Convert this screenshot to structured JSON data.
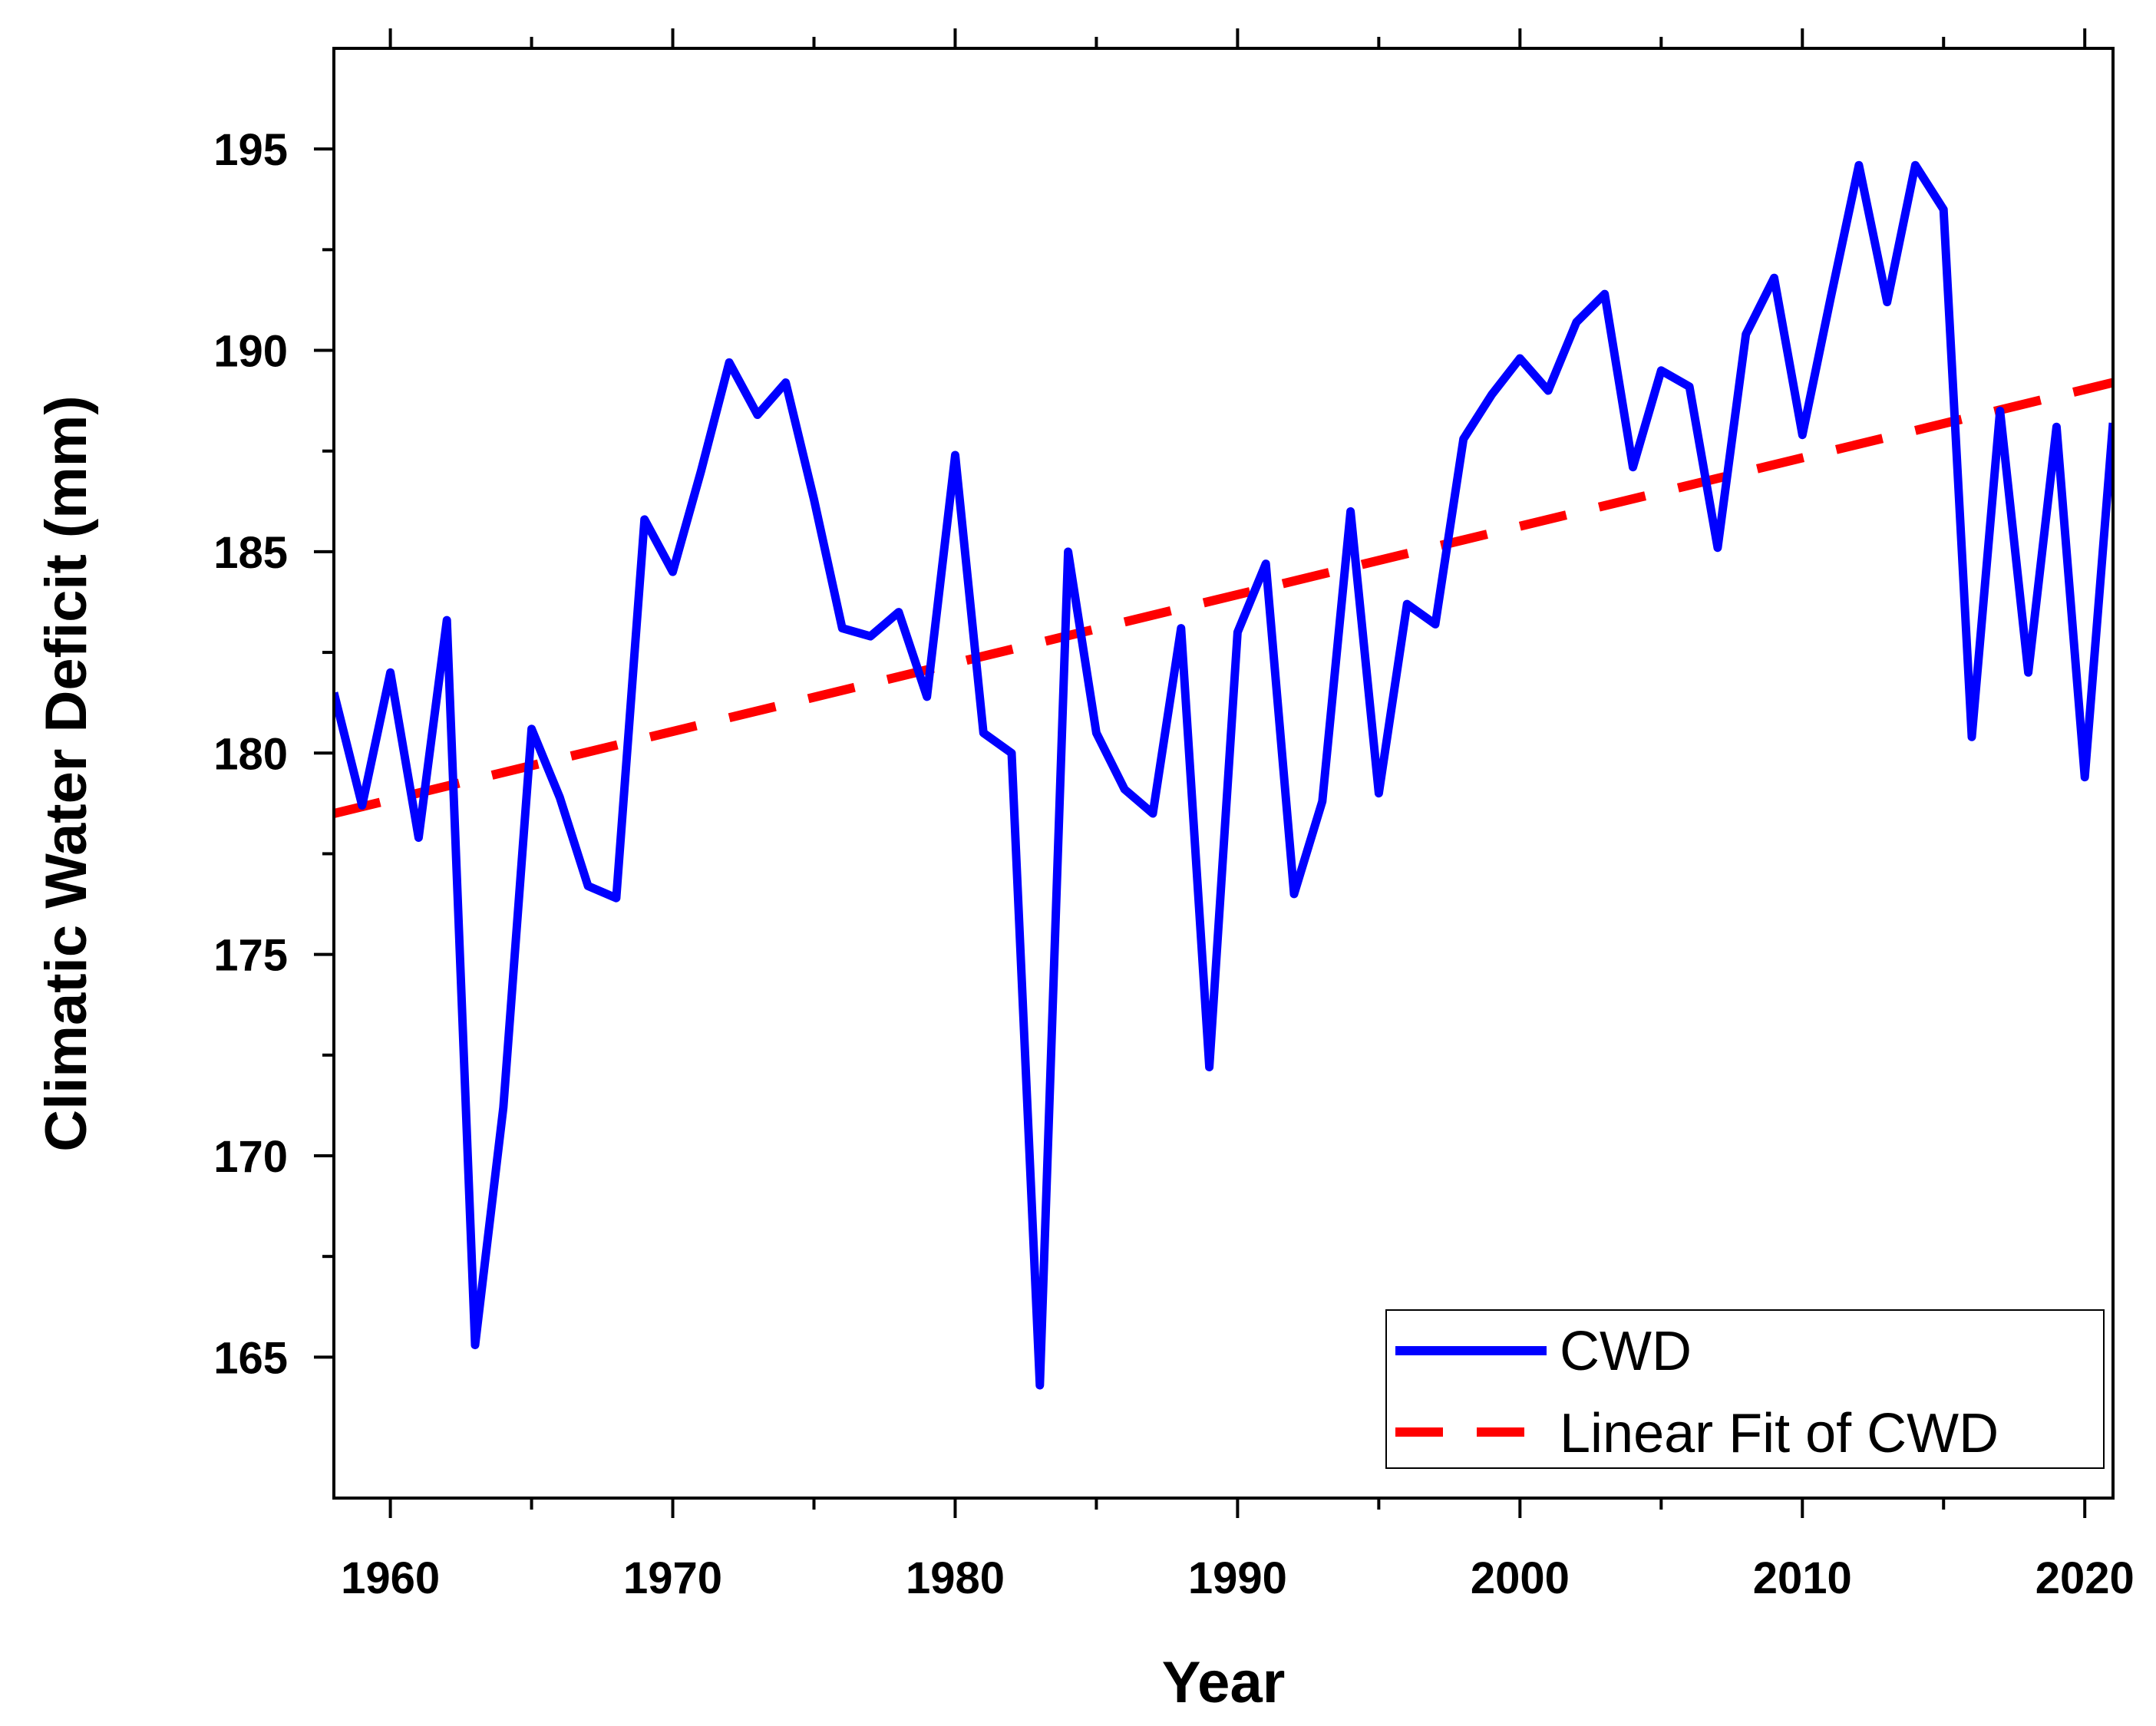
{
  "chart_data": {
    "type": "line",
    "title": "",
    "xlabel": "Year",
    "ylabel": "Climatic Water Deficit (mm)",
    "xlim": [
      1958,
      2021
    ],
    "ylim": [
      161.5,
      197.5
    ],
    "x_ticks": [
      1960,
      1970,
      1980,
      1990,
      2000,
      2010,
      2020
    ],
    "x_minor_ticks": [
      1965,
      1975,
      1985,
      1995,
      2005,
      2015
    ],
    "y_ticks": [
      165,
      170,
      175,
      180,
      185,
      190,
      195
    ],
    "y_minor_ticks": [
      167.5,
      172.5,
      177.5,
      182.5,
      187.5,
      192.5
    ],
    "x_tick_labels": [
      "1960",
      "1970",
      "1980",
      "1990",
      "2000",
      "2010",
      "2020"
    ],
    "y_tick_labels": [
      "165",
      "170",
      "175",
      "180",
      "185",
      "190",
      "195"
    ],
    "grid": false,
    "legend_position": "bottom-right",
    "series": [
      {
        "name": "CWD",
        "style": "solid",
        "color": "#0000FF",
        "x": [
          1958,
          1959,
          1960,
          1961,
          1962,
          1963,
          1964,
          1965,
          1966,
          1967,
          1968,
          1969,
          1970,
          1971,
          1972,
          1973,
          1974,
          1975,
          1976,
          1977,
          1978,
          1979,
          1980,
          1981,
          1982,
          1983,
          1984,
          1985,
          1986,
          1987,
          1988,
          1989,
          1990,
          1991,
          1992,
          1993,
          1994,
          1995,
          1996,
          1997,
          1998,
          1999,
          2000,
          2001,
          2002,
          2003,
          2004,
          2005,
          2006,
          2007,
          2008,
          2009,
          2010,
          2011,
          2012,
          2013,
          2014,
          2015,
          2016,
          2017,
          2018,
          2019,
          2020,
          2021
        ],
        "values": [
          181.5,
          178.7,
          182.0,
          177.9,
          183.3,
          165.3,
          171.2,
          180.6,
          178.9,
          176.7,
          176.4,
          185.8,
          184.5,
          187.0,
          189.7,
          188.4,
          189.2,
          186.3,
          183.1,
          182.9,
          183.5,
          181.4,
          187.4,
          180.5,
          180.0,
          164.3,
          185.0,
          180.5,
          179.1,
          178.5,
          183.1,
          172.2,
          183.0,
          184.7,
          176.5,
          178.8,
          186.0,
          179.0,
          183.7,
          183.2,
          187.8,
          188.9,
          189.8,
          189.0,
          190.7,
          191.4,
          187.1,
          189.5,
          189.1,
          185.1,
          190.4,
          191.8,
          187.9,
          191.3,
          194.6,
          191.2,
          194.6,
          193.5,
          180.4,
          188.5,
          182.0,
          188.1,
          179.4,
          188.2
        ]
      },
      {
        "name": "Linear Fit of CWD",
        "style": "dashed",
        "color": "#FF0000",
        "x": [
          1958,
          2021
        ],
        "values": [
          178.5,
          189.2
        ]
      }
    ]
  }
}
